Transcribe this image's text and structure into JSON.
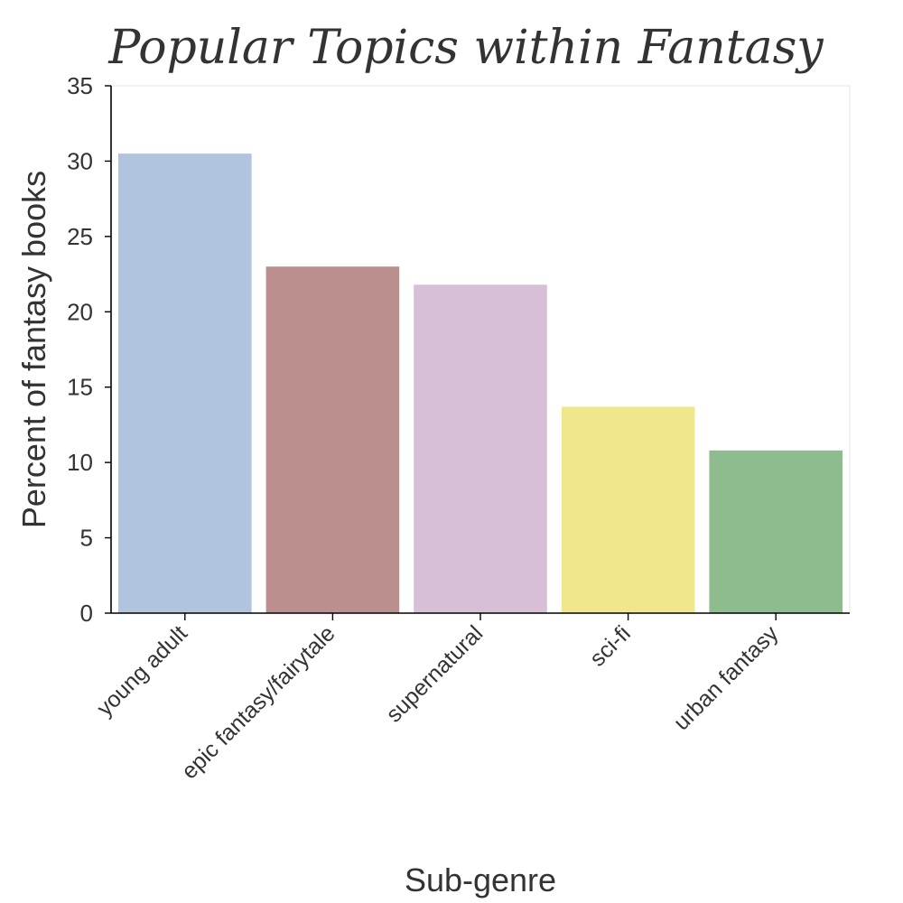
{
  "chart_data": {
    "type": "bar",
    "title": "Popular Topics within Fantasy",
    "xlabel": "Sub-genre",
    "ylabel": "Percent of fantasy books",
    "ylim": [
      0,
      35
    ],
    "yticks": [
      0,
      5,
      10,
      15,
      20,
      25,
      30,
      35
    ],
    "categories": [
      "young adult",
      "epic fantasy/fairytale",
      "supernatural",
      "sci-fi",
      "urban fantasy"
    ],
    "values": [
      30.5,
      23.0,
      21.8,
      13.7,
      10.8
    ],
    "colors": [
      "#b0c4de",
      "#bc8f8f",
      "#d8bfd8",
      "#f0e68c",
      "#8fbc8f"
    ],
    "grid": false,
    "legend": "none"
  }
}
